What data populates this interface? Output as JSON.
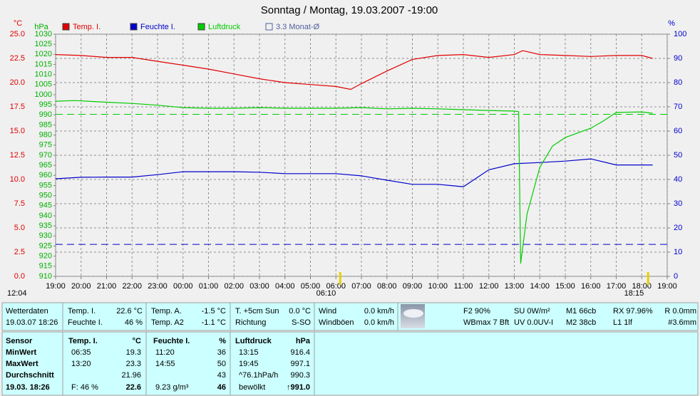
{
  "chart_data": {
    "type": "line",
    "title": "Sonntag / Montag, 19.03.2007 -19:00",
    "ylabel": "°C",
    "y2label": "hPa",
    "y3label": "%",
    "xlim": [
      0,
      24
    ],
    "xticks": [
      {
        "value": 0,
        "label": "19:00"
      },
      {
        "value": 1,
        "label": "20:00"
      },
      {
        "value": 2,
        "label": "21:00"
      },
      {
        "value": 3,
        "label": "22:00"
      },
      {
        "value": 4,
        "label": "23:00"
      },
      {
        "value": 5,
        "label": "00:00"
      },
      {
        "value": 6,
        "label": "01:00"
      },
      {
        "value": 7,
        "label": "02:00"
      },
      {
        "value": 8,
        "label": "03:00"
      },
      {
        "value": 9,
        "label": "04:00"
      },
      {
        "value": 10,
        "label": "05:00"
      },
      {
        "value": 11,
        "label": "06:00"
      },
      {
        "value": 12,
        "label": "07:00"
      },
      {
        "value": 13,
        "label": "08:00"
      },
      {
        "value": 14,
        "label": "09:00"
      },
      {
        "value": 15,
        "label": "10:00"
      },
      {
        "value": 16,
        "label": "11:00"
      },
      {
        "value": 17,
        "label": "12:00"
      },
      {
        "value": 18,
        "label": "13:00"
      },
      {
        "value": 19,
        "label": "14:00"
      },
      {
        "value": 20,
        "label": "15:00"
      },
      {
        "value": 21,
        "label": "16:00"
      },
      {
        "value": 22,
        "label": "17:00"
      },
      {
        "value": 23,
        "label": "18:00"
      },
      {
        "value": 24,
        "label": "19:00"
      }
    ],
    "ylim": [
      0,
      25
    ],
    "yticks": [
      {
        "value": 0,
        "label": "0.0"
      },
      2.5,
      {
        "value": 5,
        "label": "5.0"
      },
      7.5,
      {
        "value": 10,
        "label": "10.0"
      },
      12.5,
      {
        "value": 15,
        "label": "15.0"
      },
      17.5,
      {
        "value": 20,
        "label": "20.0"
      },
      22.5,
      {
        "value": 25,
        "label": "25.0"
      }
    ],
    "y2lim": [
      910,
      1030
    ],
    "y2ticks": [
      910,
      915,
      920,
      925,
      930,
      935,
      940,
      945,
      950,
      955,
      960,
      965,
      970,
      975,
      980,
      985,
      990,
      995,
      1000,
      1005,
      1010,
      1015,
      1020,
      1025,
      1030
    ],
    "y3lim": [
      0,
      100
    ],
    "y3ticks": [
      0,
      10,
      20,
      30,
      40,
      50,
      60,
      70,
      80,
      90,
      100
    ],
    "ytick_color": "#e00000",
    "y2tick_color": "#00b000",
    "y3tick_color": "#0000cc",
    "grid": true,
    "series": [
      {
        "name": "Temp. I.",
        "color": "#e00000",
        "axis": "y",
        "x": [
          0,
          1,
          2,
          3,
          4,
          5,
          6,
          7,
          8,
          9,
          10,
          11,
          11.58,
          12,
          13,
          14,
          15,
          16,
          17,
          18,
          18.33,
          19,
          20,
          21,
          22,
          23,
          23.43
        ],
        "values": [
          22.9,
          22.8,
          22.6,
          22.6,
          22.2,
          21.8,
          21.4,
          20.9,
          20.4,
          20.0,
          19.8,
          19.6,
          19.3,
          19.9,
          21.2,
          22.4,
          22.8,
          22.9,
          22.6,
          22.9,
          23.3,
          22.9,
          22.8,
          22.7,
          22.8,
          22.8,
          22.5
        ]
      },
      {
        "name": "Feuchte I.",
        "color": "#0000cc",
        "axis": "y3",
        "x": [
          0,
          1,
          2,
          3,
          4,
          5,
          6,
          7,
          8,
          9,
          10,
          11,
          12,
          13,
          14,
          15,
          16,
          17,
          18,
          19,
          20,
          21,
          22,
          23,
          23.43
        ],
        "values": [
          40.3,
          40.9,
          41,
          41,
          42,
          43.2,
          43.2,
          43.2,
          43,
          42.4,
          42.4,
          42.4,
          41.5,
          39.7,
          38,
          38,
          37,
          44,
          46.5,
          47,
          47.6,
          48.5,
          46,
          46,
          46
        ]
      },
      {
        "name": "Luftdruck",
        "color": "#00cc00",
        "axis": "y2",
        "x": [
          0,
          0.75,
          2,
          3,
          4,
          5,
          6,
          7,
          8,
          9,
          10,
          11,
          12,
          13,
          14,
          15,
          16,
          17,
          18,
          18.17,
          18.25,
          18.5,
          19,
          19.5,
          20,
          21,
          21.5,
          22,
          23,
          23.43
        ],
        "values": [
          996.8,
          997.1,
          996.3,
          995.7,
          994.8,
          993.6,
          993.3,
          993.3,
          993.6,
          993.3,
          993.3,
          993.3,
          993.6,
          993.0,
          993.3,
          993.0,
          992.6,
          992.2,
          991.9,
          991.6,
          916.4,
          941.0,
          964.0,
          974.6,
          978.8,
          983.4,
          987.0,
          991.2,
          991.5,
          990.8
        ]
      }
    ],
    "average_legend": "3.3 Monat-Ø",
    "average_lines": [
      {
        "value": 990.3,
        "axis": "y2",
        "color": "#00cc00"
      },
      {
        "value": 3.3,
        "axis": "y",
        "color": "#0000cc"
      }
    ],
    "sun_times": [
      {
        "x": 11.1667,
        "label": "06:10"
      },
      {
        "x": 23.25,
        "label": "18:15"
      }
    ],
    "corner_time": "12:04"
  },
  "panel": {
    "current": {
      "title": "Wetterdaten",
      "time": "19.03.07 18:26",
      "pairs": [
        [
          [
            "Temp. I.",
            "22.6 °C"
          ],
          [
            "Feuchte I.",
            "46 %"
          ]
        ],
        [
          [
            "Temp. A.",
            "-1.5 °C"
          ],
          [
            "Temp. A2",
            "-1.1 °C"
          ]
        ],
        [
          [
            "T. +5cm Sun",
            "0.0 °C"
          ],
          [
            "Richtung",
            "S-SO"
          ]
        ],
        [
          [
            "Wind",
            "0.0 km/h"
          ],
          [
            "Windböen",
            "0.0 km/h"
          ]
        ]
      ],
      "extras": [
        [
          "F2 90%",
          "WBmax 7 Bft"
        ],
        [
          "SU 0W/m²",
          "UV 0.0UV-I"
        ],
        [
          "M1 66cb",
          "M2 38cb"
        ],
        [
          "RX 97.96%",
          "L1 1lf"
        ],
        [
          "R 0.0mm",
          "#3.6mm"
        ]
      ]
    },
    "stats": {
      "row_labels": [
        "Sensor",
        "MinWert",
        "MaxWert",
        "Durchschnitt",
        "19.03. 18:26"
      ],
      "columns": [
        {
          "header": [
            "Temp. I.",
            "°C"
          ],
          "rows": [
            [
              "06:35",
              "19.3"
            ],
            [
              "13:20",
              "23.3"
            ],
            [
              null,
              "21.96"
            ],
            [
              "F: 46 %",
              "22.6"
            ]
          ]
        },
        {
          "header": [
            "Feuchte I.",
            "%"
          ],
          "rows": [
            [
              "11:20",
              "36"
            ],
            [
              "14:55",
              "50"
            ],
            [
              null,
              "43"
            ],
            [
              "9.23 g/m³",
              "46"
            ]
          ]
        },
        {
          "header": [
            "Luftdruck",
            "hPa"
          ],
          "rows": [
            [
              "13:15",
              "916.4"
            ],
            [
              "19:45",
              "997.1"
            ],
            [
              "^76.1hPa/h",
              "990.3"
            ],
            [
              "bewölkt",
              "↑991.0"
            ]
          ]
        }
      ]
    }
  }
}
